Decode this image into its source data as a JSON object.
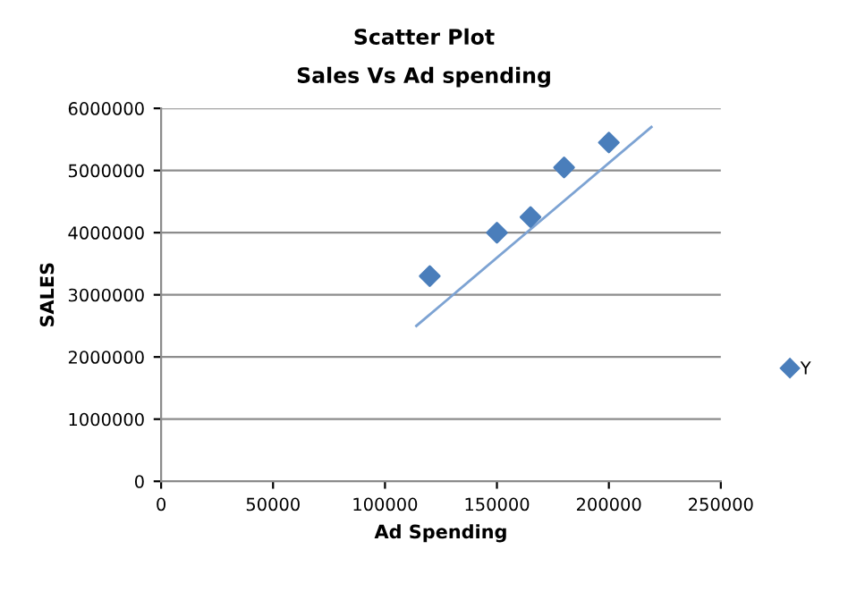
{
  "chart_data": {
    "type": "scatter",
    "title": "Scatter Plot",
    "subtitle": "Sales Vs Ad spending",
    "xlabel": "Ad Spending",
    "ylabel": "SALES",
    "x": [
      120000,
      150000,
      165000,
      180000,
      200000
    ],
    "series": [
      {
        "name": "Y",
        "color": "#4a7ebb",
        "marker": "diamond",
        "values": [
          3300000,
          4000000,
          4250000,
          5050000,
          5450000
        ]
      },
      {
        "type": "line",
        "color": "#7da3d3",
        "x": [
          114000,
          219000
        ],
        "values": [
          2500000,
          5700000
        ],
        "line_style": "solid",
        "marker": "none"
      }
    ],
    "xlim": [
      0,
      250000
    ],
    "xticks": [
      0,
      50000,
      100000,
      150000,
      200000,
      250000
    ],
    "ylim": [
      0,
      6000000
    ],
    "yticks": [
      0,
      1000000,
      2000000,
      3000000,
      4000000,
      5000000,
      6000000
    ],
    "grid": "y",
    "legend": "right"
  }
}
